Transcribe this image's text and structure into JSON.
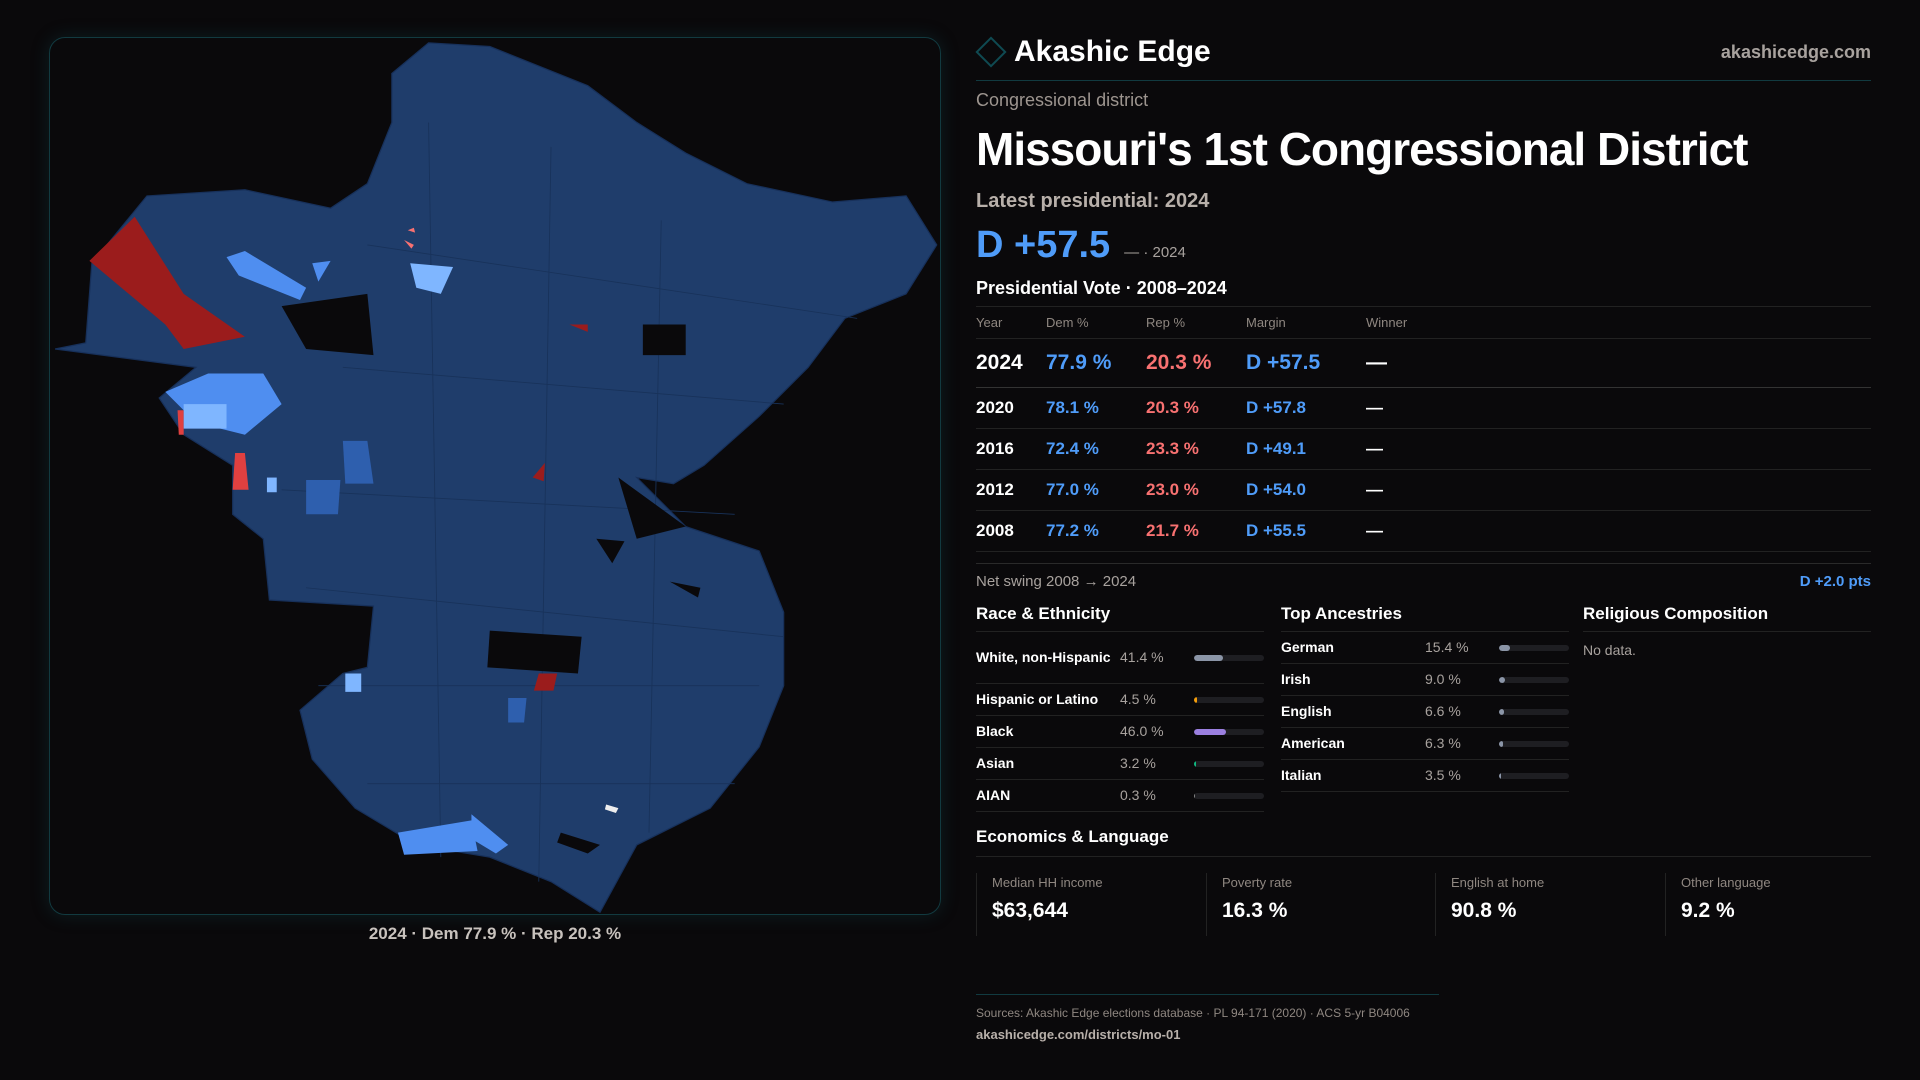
{
  "brand": {
    "name": "Akashic Edge",
    "site": "akashicedge.com"
  },
  "header": {
    "kicker": "Congressional district",
    "title": "Missouri's 1st Congressional District",
    "latest": "Latest presidential: 2024",
    "margin": "D +57.5",
    "margin_sub": "— · 2024"
  },
  "map": {
    "caption": "2024 · Dem 77.9 % · Rep 20.3 %",
    "colors": {
      "dem_strong": "#1f3d6b",
      "dem_mid": "#3f7fdc",
      "dem_light": "#74b2ff",
      "rep": "#9b1c1c",
      "rep_light": "#f87171"
    }
  },
  "presidential": {
    "title": "Presidential Vote · 2008–2024",
    "columns": [
      "Year",
      "Dem %",
      "Rep %",
      "Margin",
      "Winner"
    ],
    "rows": [
      {
        "year": "2024",
        "dem": "77.9 %",
        "rep": "20.3 %",
        "margin": "D +57.5",
        "winner": "—"
      },
      {
        "year": "2020",
        "dem": "78.1 %",
        "rep": "20.3 %",
        "margin": "D +57.8",
        "winner": "—"
      },
      {
        "year": "2016",
        "dem": "72.4 %",
        "rep": "23.3 %",
        "margin": "D +49.1",
        "winner": "—"
      },
      {
        "year": "2012",
        "dem": "77.0 %",
        "rep": "23.0 %",
        "margin": "D +54.0",
        "winner": "—"
      },
      {
        "year": "2008",
        "dem": "77.2 %",
        "rep": "21.7 %",
        "margin": "D +55.5",
        "winner": "—"
      }
    ],
    "swing_label": "Net swing 2008 → 2024",
    "swing_value": "D +2.0 pts"
  },
  "race": {
    "title": "Race & Ethnicity",
    "items": [
      {
        "label": "White, non-Hispanic",
        "value": "41.4 %",
        "fraction": 0.414,
        "color": "#8b95a7"
      },
      {
        "label": "Hispanic or Latino",
        "value": "4.5 %",
        "fraction": 0.045,
        "color": "#f59e0b"
      },
      {
        "label": "Black",
        "value": "46.0 %",
        "fraction": 0.46,
        "color": "#9b7fe0"
      },
      {
        "label": "Asian",
        "value": "3.2 %",
        "fraction": 0.032,
        "color": "#10b981"
      },
      {
        "label": "AIAN",
        "value": "0.3 %",
        "fraction": 0.003,
        "color": "#888888"
      }
    ]
  },
  "ancestry": {
    "title": "Top Ancestries",
    "items": [
      {
        "label": "German",
        "value": "15.4 %",
        "fraction": 0.154
      },
      {
        "label": "Irish",
        "value": "9.0 %",
        "fraction": 0.09
      },
      {
        "label": "English",
        "value": "6.6 %",
        "fraction": 0.066
      },
      {
        "label": "American",
        "value": "6.3 %",
        "fraction": 0.063
      },
      {
        "label": "Italian",
        "value": "3.5 %",
        "fraction": 0.035
      }
    ]
  },
  "religion": {
    "title": "Religious Composition",
    "empty": "No data."
  },
  "economics": {
    "title": "Economics & Language",
    "cards": [
      {
        "label": "Median HH income",
        "value": "$63,644"
      },
      {
        "label": "Poverty rate",
        "value": "16.3 %"
      },
      {
        "label": "English at home",
        "value": "90.8 %"
      },
      {
        "label": "Other language",
        "value": "9.2 %"
      }
    ]
  },
  "footer": {
    "sources": "Sources: Akashic Edge elections database · PL 94-171 (2020) · ACS 5-yr B04006",
    "url": "akashicedge.com/districts/mo-01"
  }
}
